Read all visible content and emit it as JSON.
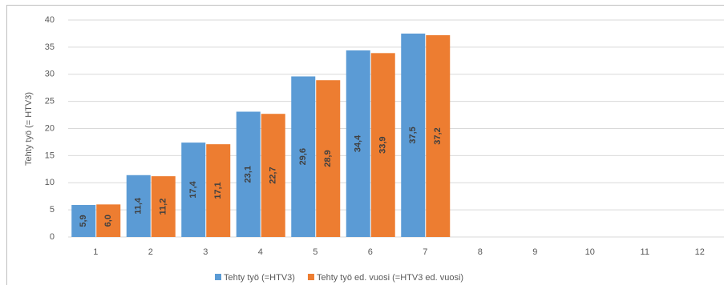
{
  "chart_data": {
    "type": "bar",
    "y_label": "Tehty työ (= HTV3)",
    "categories": [
      "1",
      "2",
      "3",
      "4",
      "5",
      "6",
      "7",
      "8",
      "9",
      "10",
      "11",
      "12"
    ],
    "series": [
      {
        "name": "Tehty työ (=HTV3)",
        "color": "#5b9bd5",
        "values": [
          5.9,
          11.4,
          17.4,
          23.1,
          29.6,
          34.4,
          37.5,
          null,
          null,
          null,
          null,
          null
        ],
        "value_labels": [
          "5,9",
          "11,4",
          "17,4",
          "23,1",
          "29,6",
          "34,4",
          "37,5",
          null,
          null,
          null,
          null,
          null
        ]
      },
      {
        "name": "Tehty työ ed. vuosi (=HTV3 ed. vuosi)",
        "color": "#ed7d31",
        "values": [
          6.0,
          11.2,
          17.1,
          22.7,
          28.9,
          33.9,
          37.2,
          null,
          null,
          null,
          null,
          null
        ],
        "value_labels": [
          "6,0",
          "11,2",
          "17,1",
          "22,7",
          "28,9",
          "33,9",
          "37,2",
          null,
          null,
          null,
          null,
          null
        ]
      }
    ],
    "ylim": [
      0,
      40
    ],
    "yticks": [
      0,
      5,
      10,
      15,
      20,
      25,
      30,
      35,
      40
    ],
    "grid": true,
    "legend": "bottom"
  }
}
